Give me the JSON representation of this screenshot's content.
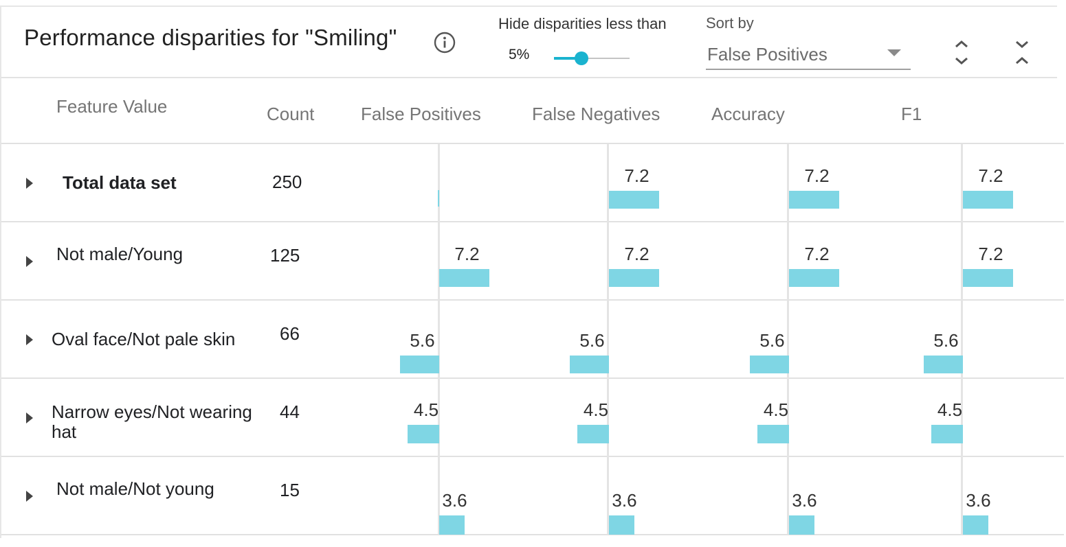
{
  "header": {
    "title": "Performance disparities for \"Smiling\"",
    "info_icon": "info-icon",
    "threshold_label": "Hide disparities less than",
    "threshold_value": "5%",
    "threshold_fraction": 0.36,
    "sort_label": "Sort by",
    "sort_value": "False Positives"
  },
  "table": {
    "columns": [
      "Feature Value",
      "Count",
      "False Positives",
      "False Negatives",
      "Accuracy",
      "F1"
    ],
    "rows": [
      {
        "feature": "Total data set",
        "bold": true,
        "count": "250",
        "metrics": [
          null,
          7.2,
          7.2,
          7.2
        ]
      },
      {
        "feature": "Not male/Young",
        "bold": false,
        "count": "125",
        "metrics": [
          7.2,
          7.2,
          7.2,
          7.2
        ]
      },
      {
        "feature": "Oval face/Not pale skin",
        "bold": false,
        "count": "66",
        "metrics": [
          -5.6,
          -5.6,
          -5.6,
          -5.6
        ]
      },
      {
        "feature": "Narrow eyes/Not wearing hat",
        "bold": false,
        "count": "44",
        "metrics": [
          -4.5,
          -4.5,
          -4.5,
          -4.5
        ]
      },
      {
        "feature": "Not male/Not young",
        "bold": false,
        "count": "15",
        "metrics": [
          3.6,
          3.6,
          3.6,
          3.6
        ]
      }
    ]
  },
  "colors": {
    "accent": "#1ab3cf",
    "bar": "#7fd6e4",
    "grid": "#e1e1e1"
  }
}
